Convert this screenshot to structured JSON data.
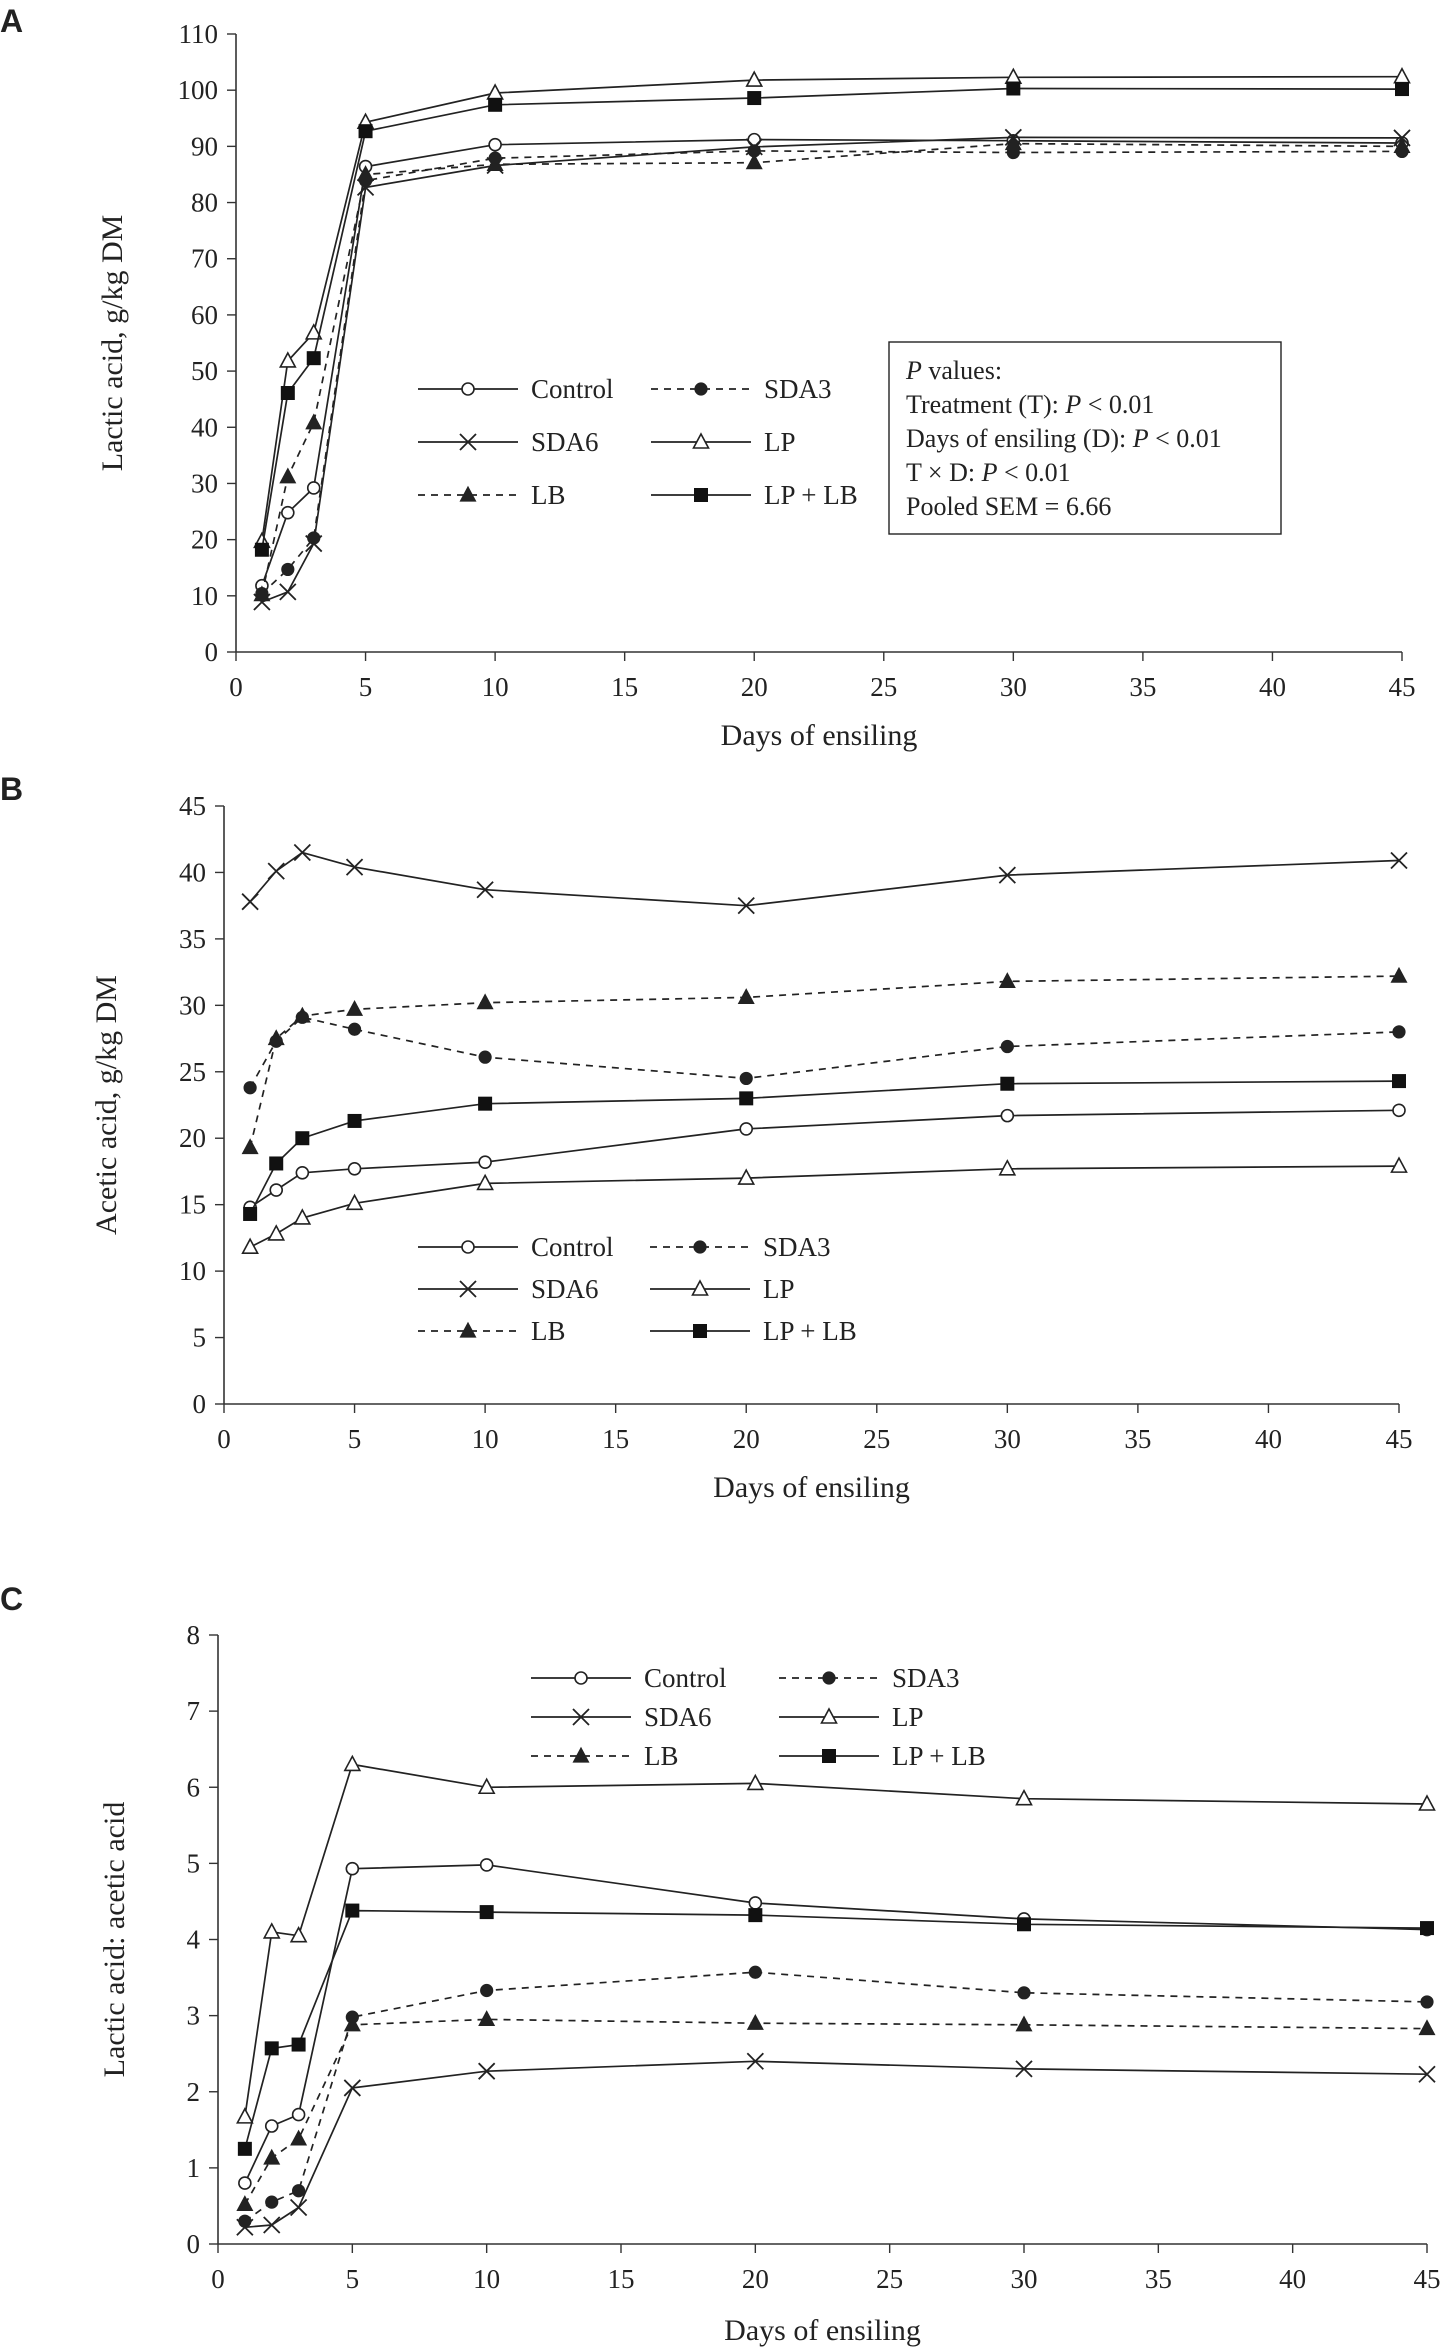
{
  "chart_data": [
    {
      "panel": "A",
      "type": "line",
      "xlabel": "Days of ensiling",
      "ylabel": "Lactic acid, g/kg DM",
      "xlim": [
        0,
        45
      ],
      "ylim": [
        0,
        110
      ],
      "xticks": [
        0,
        5,
        10,
        15,
        20,
        25,
        30,
        35,
        40,
        45
      ],
      "yticks": [
        0,
        10,
        20,
        30,
        40,
        50,
        60,
        70,
        80,
        90,
        100,
        110
      ],
      "grid": false,
      "legend_position": "center-left",
      "x": [
        1,
        2,
        3,
        5,
        10,
        20,
        30,
        45
      ],
      "series": [
        {
          "name": "Control",
          "marker": "circle-open",
          "dash": "solid",
          "values": [
            11.8,
            24.8,
            29.2,
            86.4,
            90.3,
            91.2,
            91.0,
            90.6
          ]
        },
        {
          "name": "SDA3",
          "marker": "circle-filled",
          "dash": "dashed",
          "values": [
            10.4,
            14.7,
            20.3,
            83.9,
            87.9,
            89.2,
            88.9,
            89.1
          ]
        },
        {
          "name": "SDA6",
          "marker": "cross",
          "dash": "solid",
          "values": [
            8.9,
            10.7,
            19.3,
            82.7,
            86.6,
            89.9,
            91.6,
            91.5
          ]
        },
        {
          "name": "LP",
          "marker": "triangle-open",
          "dash": "solid",
          "values": [
            19.7,
            51.8,
            56.8,
            94.3,
            99.5,
            101.8,
            102.3,
            102.4
          ]
        },
        {
          "name": "LB",
          "marker": "triangle-filled",
          "dash": "dashed",
          "values": [
            10.2,
            31.2,
            40.8,
            85.0,
            86.8,
            87.1,
            90.5,
            90.0
          ]
        },
        {
          "name": "LP + LB",
          "marker": "square-filled",
          "dash": "solid",
          "values": [
            18.2,
            46.1,
            52.3,
            92.7,
            97.4,
            98.6,
            100.3,
            100.2
          ]
        }
      ],
      "annotation": {
        "title_italic": "P",
        "title_rest": " values:",
        "lines": [
          {
            "label": "Treatment (T): ",
            "italic": "P",
            "value": " < 0.01"
          },
          {
            "label": "Days of ensiling (D): ",
            "italic": "P",
            "value": " < 0.01"
          },
          {
            "label": "T × D: ",
            "italic": "P",
            "value": " < 0.01"
          },
          {
            "label": "Pooled SEM = 6.66",
            "italic": "",
            "value": ""
          }
        ]
      }
    },
    {
      "panel": "B",
      "type": "line",
      "xlabel": "Days of ensiling",
      "ylabel": "Acetic acid, g/kg DM",
      "xlim": [
        0,
        45
      ],
      "ylim": [
        0,
        45
      ],
      "xticks": [
        0,
        5,
        10,
        15,
        20,
        25,
        30,
        35,
        40,
        45
      ],
      "yticks": [
        0,
        5,
        10,
        15,
        20,
        25,
        30,
        35,
        40,
        45
      ],
      "grid": false,
      "legend_position": "bottom-left",
      "x": [
        1,
        2,
        3,
        5,
        10,
        20,
        30,
        45
      ],
      "series": [
        {
          "name": "Control",
          "marker": "circle-open",
          "dash": "solid",
          "values": [
            14.8,
            16.1,
            17.4,
            17.7,
            18.2,
            20.7,
            21.7,
            22.1
          ]
        },
        {
          "name": "SDA3",
          "marker": "circle-filled",
          "dash": "dashed",
          "values": [
            23.8,
            27.3,
            29.1,
            28.2,
            26.1,
            24.5,
            26.9,
            28.0
          ]
        },
        {
          "name": "SDA6",
          "marker": "cross",
          "dash": "solid",
          "values": [
            37.8,
            40.1,
            41.5,
            40.4,
            38.7,
            37.5,
            39.8,
            40.9
          ]
        },
        {
          "name": "LP",
          "marker": "triangle-open",
          "dash": "solid",
          "values": [
            11.8,
            12.8,
            14.0,
            15.1,
            16.6,
            17.0,
            17.7,
            17.9
          ]
        },
        {
          "name": "LB",
          "marker": "triangle-filled",
          "dash": "dashed",
          "values": [
            19.3,
            27.5,
            29.2,
            29.7,
            30.2,
            30.6,
            31.8,
            32.2
          ]
        },
        {
          "name": "LP + LB",
          "marker": "square-filled",
          "dash": "solid",
          "values": [
            14.3,
            18.1,
            20.0,
            21.3,
            22.6,
            23.0,
            24.1,
            24.3
          ]
        }
      ]
    },
    {
      "panel": "C",
      "type": "line",
      "xlabel": "Days of ensiling",
      "ylabel": "Lactic acid: acetic acid",
      "xlim": [
        0,
        45
      ],
      "ylim": [
        0,
        8
      ],
      "xticks": [
        0,
        5,
        10,
        15,
        20,
        25,
        30,
        35,
        40,
        45
      ],
      "yticks": [
        0,
        1,
        2,
        3,
        4,
        5,
        6,
        7,
        8
      ],
      "grid": false,
      "legend_position": "top-center",
      "x": [
        1,
        2,
        3,
        5,
        10,
        20,
        30,
        45
      ],
      "series": [
        {
          "name": "Control",
          "marker": "circle-open",
          "dash": "solid",
          "values": [
            0.8,
            1.55,
            1.7,
            4.93,
            4.98,
            4.48,
            4.27,
            4.13
          ]
        },
        {
          "name": "SDA3",
          "marker": "circle-filled",
          "dash": "dashed",
          "values": [
            0.3,
            0.55,
            0.7,
            2.98,
            3.33,
            3.57,
            3.3,
            3.18
          ]
        },
        {
          "name": "SDA6",
          "marker": "cross",
          "dash": "solid",
          "values": [
            0.22,
            0.25,
            0.48,
            2.05,
            2.27,
            2.4,
            2.3,
            2.23
          ]
        },
        {
          "name": "LP",
          "marker": "triangle-open",
          "dash": "solid",
          "values": [
            1.67,
            4.1,
            4.05,
            6.3,
            6.0,
            6.05,
            5.85,
            5.78
          ]
        },
        {
          "name": "LB",
          "marker": "triangle-filled",
          "dash": "dashed",
          "values": [
            0.52,
            1.13,
            1.38,
            2.88,
            2.95,
            2.9,
            2.88,
            2.83
          ]
        },
        {
          "name": "LP + LB",
          "marker": "square-filled",
          "dash": "solid",
          "values": [
            1.25,
            2.57,
            2.62,
            4.38,
            4.36,
            4.32,
            4.2,
            4.15
          ]
        }
      ]
    }
  ]
}
